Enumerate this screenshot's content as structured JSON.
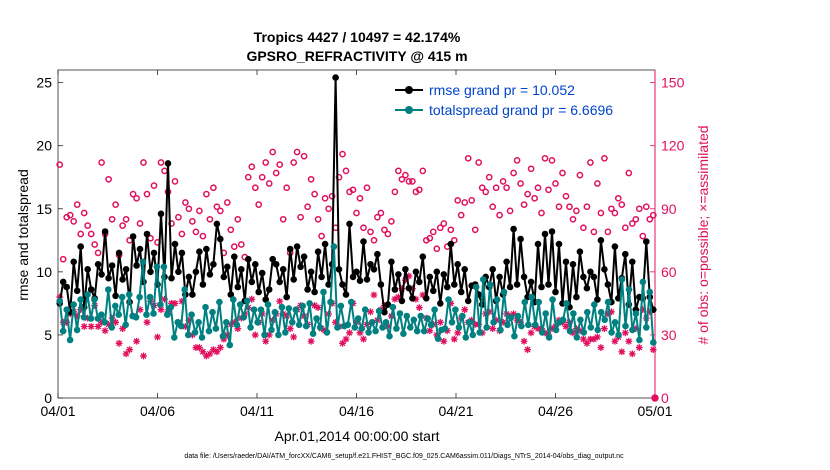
{
  "chart_data": {
    "type": "line",
    "title_line1": "Tropics 4427 / 10497 = 42.174%",
    "title_line2": "GPSRO_REFRACTIVITY @ 415 m",
    "xlabel": "Apr.01,2014 00:00:00 start",
    "ylabel_left": "rmse and totalspread",
    "ylabel_right": "# of obs: o=possible; ×=assimilated",
    "footer": "data file: /Users/raeder/DAI/ATM_forcXX/CAM6_setup/f.e21.FHIST_BGC.f09_025.CAM6assim.011/Diags_NTrS_2014-04/obs_diag_output.nc",
    "x_ticks": [
      "04/01",
      "04/06",
      "04/11",
      "04/16",
      "04/21",
      "04/26",
      "05/01"
    ],
    "xlim": [
      0,
      30
    ],
    "ylim_left": [
      0,
      26
    ],
    "yticks_left": [
      "0",
      "5",
      "10",
      "15",
      "20",
      "25"
    ],
    "ylim_right": [
      0,
      156
    ],
    "yticks_right": [
      "0",
      "30",
      "60",
      "90",
      "120",
      "150"
    ],
    "colors": {
      "rmse": "#000000",
      "spread": "#008080",
      "obs": "#e0105f",
      "legend_text": "#0044cc"
    },
    "series": [
      {
        "name": "rmse grand pr = 10.052",
        "key": "rmse",
        "values": [
          7.5,
          9.2,
          8.8,
          6.8,
          10.8,
          8.5,
          12.0,
          7.2,
          10.2,
          8.6,
          7.9,
          10.6,
          9.8,
          13.2,
          9.5,
          10.5,
          8.1,
          11.5,
          9.4,
          10.2,
          7.6,
          12.8,
          10.5,
          11.8,
          9.2,
          13.0,
          10.0,
          11.5,
          9.0,
          14.6,
          9.6,
          18.6,
          9.5,
          12.2,
          10.0,
          11.5,
          8.2,
          9.6,
          8.2,
          10.0,
          11.6,
          9.0,
          11.8,
          9.8,
          10.6,
          13.8,
          12.6,
          9.6,
          10.4,
          8.2,
          11.2,
          8.8,
          10.2,
          7.7,
          11.0,
          9.2,
          10.6,
          8.4,
          9.9,
          7.8,
          8.6,
          11.0,
          10.6,
          9.2,
          10.2,
          8.0,
          11.8,
          9.4,
          12.0,
          10.4,
          11.2,
          8.6,
          10.0,
          8.4,
          11.6,
          9.6,
          12.2,
          9.0,
          10.6,
          25.4,
          10.2,
          9.0,
          8.2,
          13.8,
          9.6,
          10.0,
          9.3,
          12.4,
          9.4,
          10.6,
          10.2,
          11.4,
          9.0,
          6.8,
          7.4,
          10.8,
          8.6,
          9.8,
          7.7,
          10.2,
          8.7,
          7.9,
          10.0,
          9.2,
          11.2,
          7.9,
          9.6,
          8.5,
          10.0,
          7.5,
          9.8,
          8.8,
          12.2,
          9.0,
          10.6,
          8.4,
          10.2,
          7.7,
          8.9,
          9.0,
          8.2,
          7.4,
          9.6,
          8.8,
          10.2,
          7.7,
          9.6,
          8.2,
          10.8,
          8.8,
          13.4,
          9.0,
          12.6,
          9.6,
          8.0,
          9.2,
          7.6,
          12.2,
          8.8,
          13.0,
          9.0,
          13.2,
          8.4,
          12.2,
          7.5,
          10.8,
          7.2,
          10.6,
          8.0,
          11.6,
          9.6,
          8.7,
          10.0,
          9.6,
          7.8,
          12.5,
          10.2,
          9.0,
          7.6,
          12.0,
          7.9,
          9.5,
          11.4,
          7.4,
          10.8,
          7.0,
          8.0,
          7.9,
          12.4,
          8.0,
          7.0
        ]
      },
      {
        "name": "totalspread grand pr = 6.6696",
        "key": "spread",
        "values": [
          7.7,
          5.3,
          7.0,
          4.6,
          7.4,
          5.4,
          7.8,
          6.4,
          8.2,
          6.3,
          7.8,
          6.3,
          6.6,
          6.0,
          8.6,
          5.6,
          7.3,
          6.6,
          8.0,
          5.8,
          8.2,
          6.5,
          6.4,
          8.0,
          10.8,
          6.6,
          8.0,
          6.7,
          10.4,
          7.4,
          10.4,
          6.6,
          7.2,
          4.8,
          6.0,
          5.7,
          8.6,
          5.0,
          6.6,
          5.2,
          6.0,
          4.8,
          7.2,
          5.3,
          6.8,
          5.5,
          7.6,
          4.9,
          6.0,
          4.2,
          7.8,
          5.8,
          7.4,
          6.4,
          7.7,
          5.6,
          7.0,
          6.0,
          7.0,
          5.0,
          7.4,
          5.4,
          6.8,
          5.0,
          7.2,
          5.2,
          7.1,
          6.0,
          7.0,
          5.8,
          7.3,
          5.7,
          7.5,
          5.1,
          6.3,
          5.6,
          8.4,
          5.2,
          7.6,
          12.0,
          5.6,
          7.3,
          5.7,
          5.8,
          7.6,
          5.6,
          6.3,
          5.5,
          7.0,
          5.2,
          6.0,
          5.3,
          6.9,
          5.6,
          6.0,
          4.9,
          7.2,
          5.5,
          6.7,
          5.1,
          6.5,
          5.6,
          6.2,
          5.3,
          6.5,
          5.3,
          6.3,
          5.8,
          7.0,
          4.7,
          5.4,
          5.5,
          7.8,
          6.0,
          7.0,
          5.6,
          6.5,
          4.8,
          6.0,
          5.0,
          8.8,
          5.2,
          9.4,
          5.6,
          9.0,
          6.0,
          7.8,
          5.4,
          8.4,
          5.8,
          6.4,
          4.9,
          6.5,
          5.7,
          7.6,
          5.8,
          8.0,
          5.8,
          7.6,
          5.2,
          6.7,
          4.8,
          7.8,
          5.4,
          6.0,
          6.2,
          7.5,
          5.3,
          6.7,
          4.8,
          6.2,
          5.2,
          6.8,
          5.6,
          7.4,
          5.4,
          6.8,
          6.2,
          7.6,
          5.2,
          6.0,
          5.0,
          9.4,
          5.7,
          8.6,
          5.4,
          6.7,
          4.6,
          9.2,
          5.6,
          8.4,
          4.4
        ]
      },
      {
        "name": "# of obs possible",
        "key": "obs_possible",
        "marker": "o",
        "values": [
          111,
          66,
          86,
          87,
          84,
          92,
          78,
          88,
          82,
          78,
          73,
          69,
          112,
          78,
          104,
          85,
          92,
          68,
          82,
          85,
          75,
          97,
          95,
          83,
          112,
          97,
          76,
          101,
          74,
          112,
          108,
          98,
          83,
          103,
          86,
          78,
          93,
          90,
          84,
          79,
          89,
          77,
          97,
          85,
          100,
          91,
          89,
          69,
          93,
          80,
          72,
          85,
          73,
          67,
          105,
          110,
          100,
          92,
          105,
          112,
          102,
          117,
          107,
          111,
          85,
          100,
          69,
          112,
          117,
          86,
          115,
          91,
          104,
          97,
          85,
          77,
          95,
          90,
          96,
          81,
          105,
          116,
          108,
          98,
          99,
          88,
          95,
          81,
          100,
          79,
          75,
          86,
          88,
          80,
          78,
          84,
          98,
          108,
          104,
          106,
          103,
          103,
          98,
          99,
          108,
          75,
          76,
          79,
          71,
          81,
          83,
          72,
          80,
          75,
          94,
          87,
          93,
          114,
          94,
          80,
          112,
          100,
          98,
          105,
          91,
          100,
          87,
          103,
          100,
          89,
          107,
          113,
          102,
          92,
          97,
          109,
          95,
          100,
          88,
          114,
          99,
          113,
          102,
          91,
          107,
          96,
          91,
          85,
          89,
          106,
          81,
          91,
          112,
          79,
          102,
          88,
          114,
          79,
          90,
          88,
          95,
          92,
          81,
          107,
          83,
          85,
          90,
          77,
          91,
          85,
          87
        ]
      },
      {
        "name": "# of obs assimilated",
        "key": "obs_assimilated",
        "marker": "x",
        "values": [
          48,
          36,
          36,
          40,
          41,
          39,
          42,
          34,
          38,
          34,
          44,
          34,
          36,
          32,
          35,
          38,
          36,
          26,
          33,
          21,
          23,
          39,
          27,
          42,
          20,
          36,
          46,
          44,
          29,
          42,
          47,
          41,
          45,
          45,
          36,
          46,
          34,
          37,
          30,
          24,
          24,
          22,
          20,
          21,
          23,
          22,
          24,
          28,
          30,
          35,
          36,
          33,
          38,
          40,
          43,
          47,
          30,
          36,
          40,
          27,
          30,
          37,
          40,
          46,
          40,
          39,
          33,
          29,
          42,
          44,
          39,
          35,
          27,
          44,
          43,
          33,
          32,
          40,
          45,
          36,
          34,
          26,
          28,
          31,
          45,
          36,
          31,
          28,
          35,
          41,
          49,
          37,
          42,
          44,
          34,
          39,
          47,
          48,
          52,
          56,
          58,
          52,
          47,
          43,
          49,
          38,
          32,
          35,
          30,
          36,
          27,
          32,
          45,
          28,
          31,
          38,
          42,
          36,
          37,
          35,
          35,
          31,
          40,
          41,
          33,
          37,
          32,
          36,
          40,
          39,
          40,
          37,
          36,
          27,
          23,
          31,
          34,
          33,
          33,
          31,
          30,
          33,
          34,
          37,
          36,
          34,
          36,
          31,
          33,
          32,
          28,
          26,
          28,
          28,
          29,
          24,
          33,
          40,
          41,
          27,
          29,
          22,
          31,
          27,
          21,
          33,
          24,
          42,
          38,
          41,
          23
        ]
      }
    ],
    "legend": {
      "entries": [
        "rmse grand pr = 10.052",
        "totalspread grand pr = 6.6696"
      ],
      "position": "top-right"
    }
  }
}
